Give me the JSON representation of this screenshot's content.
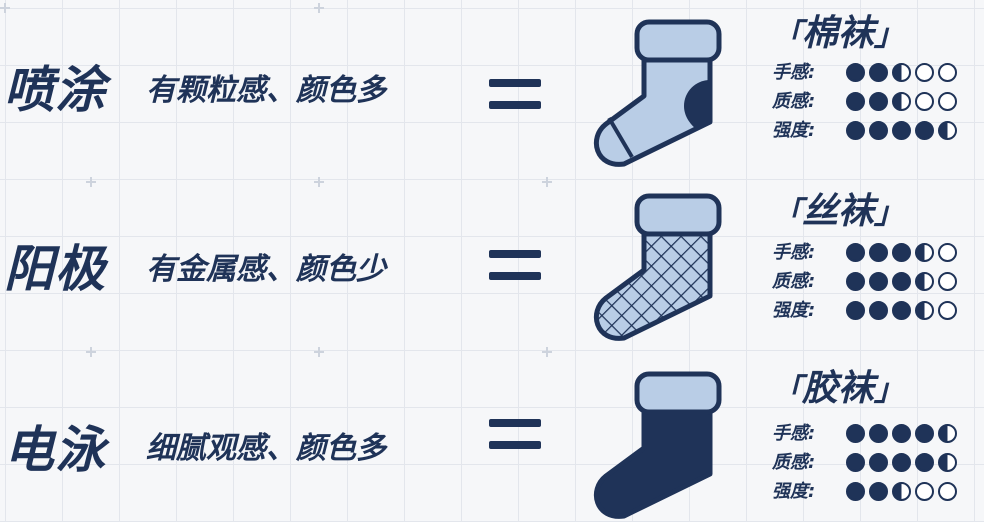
{
  "rows": [
    {
      "method": "喷涂",
      "description": "有颗粒感、颜色多",
      "sock_icon": "sock-striped-icon",
      "sock_type": "棉袜",
      "ratings": [
        {
          "label": "手感:",
          "value": 2.5,
          "max": 5
        },
        {
          "label": "质感:",
          "value": 2.5,
          "max": 5
        },
        {
          "label": "强度:",
          "value": 4.5,
          "max": 5
        }
      ]
    },
    {
      "method": "阳极",
      "description": "有金属感、颜色少",
      "sock_icon": "sock-mesh-icon",
      "sock_type": "丝袜",
      "ratings": [
        {
          "label": "手感:",
          "value": 3.5,
          "max": 5
        },
        {
          "label": "质感:",
          "value": 3.5,
          "max": 5
        },
        {
          "label": "强度:",
          "value": 3.5,
          "max": 5
        }
      ]
    },
    {
      "method": "电泳",
      "description": "细腻观感、颜色多",
      "sock_icon": "sock-solid-icon",
      "sock_type": "胶袜",
      "ratings": [
        {
          "label": "手感:",
          "value": 4.5,
          "max": 5
        },
        {
          "label": "质感:",
          "value": 4.5,
          "max": 5
        },
        {
          "label": "强度:",
          "value": 2.5,
          "max": 5
        }
      ]
    }
  ],
  "bracket_open": "「",
  "bracket_close": "」",
  "colors": {
    "navy": "#1f3358",
    "light_blue": "#b9cde6",
    "background": "#f6f7f9"
  }
}
